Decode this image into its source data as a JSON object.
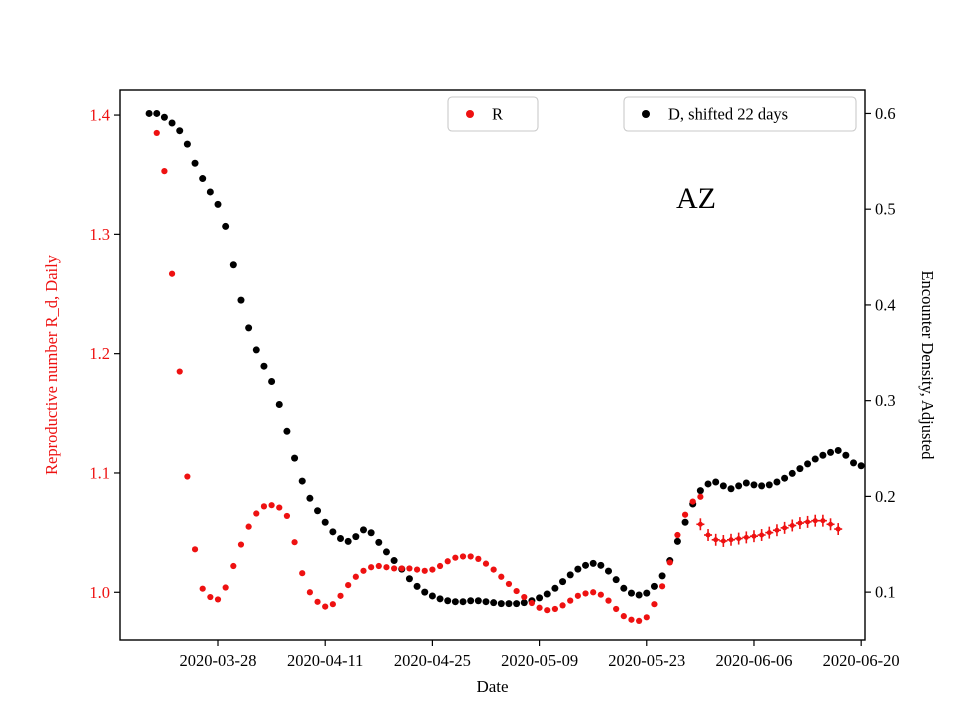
{
  "page": {
    "background": "#ffffff"
  },
  "chart_data": {
    "type": "scatter",
    "annotation": "AZ",
    "xlabel": "Date",
    "x_axis": {
      "base_date": "2020-03-28",
      "lim": [
        -12.8,
        84.5
      ],
      "ticks": [
        "2020-03-28",
        "2020-04-11",
        "2020-04-25",
        "2020-05-09",
        "2020-05-23",
        "2020-06-06",
        "2020-06-20"
      ]
    },
    "left_axis": {
      "label": "Reproductive number R_d, Daily",
      "color": "#ee1111",
      "ticks": [
        1.0,
        1.1,
        1.2,
        1.3,
        1.4
      ],
      "lim": [
        0.96,
        1.421
      ]
    },
    "right_axis": {
      "label": "Encounter Density, Adjusted",
      "color": "#000000",
      "ticks": [
        0.1,
        0.2,
        0.3,
        0.4,
        0.5,
        0.6
      ],
      "lim": [
        0.05,
        0.6245
      ]
    },
    "legend": [
      {
        "label": "R",
        "color": "#ee1111"
      },
      {
        "label": "D, shifted 22 days",
        "color": "#000000"
      }
    ],
    "series": [
      {
        "name": "D, shifted 22 days",
        "axis": "right",
        "color": "#000000",
        "marker": "circle",
        "start_date": "2020-03-19",
        "step_days": 1,
        "values": [
          0.6,
          0.6,
          0.596,
          0.59,
          0.582,
          0.568,
          0.548,
          0.532,
          0.518,
          0.505,
          0.482,
          0.442,
          0.405,
          0.376,
          0.353,
          0.336,
          0.32,
          0.296,
          0.268,
          0.24,
          0.216,
          0.198,
          0.185,
          0.173,
          0.163,
          0.156,
          0.153,
          0.158,
          0.165,
          0.162,
          0.152,
          0.142,
          0.133,
          0.124,
          0.114,
          0.106,
          0.1,
          0.096,
          0.093,
          0.091,
          0.09,
          0.09,
          0.091,
          0.091,
          0.09,
          0.089,
          0.088,
          0.088,
          0.088,
          0.089,
          0.091,
          0.094,
          0.098,
          0.104,
          0.111,
          0.118,
          0.124,
          0.128,
          0.13,
          0.128,
          0.122,
          0.113,
          0.104,
          0.099,
          0.097,
          0.099,
          0.106,
          0.117,
          0.133,
          0.153,
          0.173,
          0.192,
          0.206,
          0.213,
          0.215,
          0.211,
          0.208,
          0.211,
          0.214,
          0.212,
          0.211,
          0.212,
          0.215,
          0.219,
          0.224,
          0.229,
          0.234,
          0.239,
          0.243,
          0.246,
          0.248,
          0.243,
          0.235,
          0.232
        ]
      },
      {
        "name": "R",
        "axis": "left",
        "color": "#ee1111",
        "marker": "circle",
        "start_date": "2020-03-20",
        "step_days": 1,
        "values": [
          1.385,
          1.353,
          1.267,
          1.185,
          1.097,
          1.036,
          1.003,
          0.996,
          0.994,
          1.004,
          1.022,
          1.04,
          1.055,
          1.066,
          1.072,
          1.073,
          1.071,
          1.064,
          1.042,
          1.016,
          1.0,
          0.992,
          0.988,
          0.99,
          0.997,
          1.006,
          1.013,
          1.018,
          1.021,
          1.022,
          1.021,
          1.02,
          1.02,
          1.02,
          1.019,
          1.018,
          1.019,
          1.022,
          1.026,
          1.029,
          1.03,
          1.03,
          1.028,
          1.024,
          1.019,
          1.013,
          1.007,
          1.001,
          0.996,
          0.991,
          0.987,
          0.985,
          0.986,
          0.989,
          0.993,
          0.997,
          0.999,
          1.0,
          0.998,
          0.993,
          0.986,
          0.98,
          0.977,
          0.976,
          0.979,
          0.99,
          1.005,
          1.025,
          1.048,
          1.065,
          1.076,
          1.08
        ]
      },
      {
        "name": "R with error bars",
        "axis": "left",
        "color": "#ee1111",
        "marker": "plus_errorbar",
        "error": 0.005,
        "start_date": "2020-05-30",
        "step_days": 1,
        "values": [
          1.057,
          1.048,
          1.044,
          1.043,
          1.044,
          1.045,
          1.046,
          1.047,
          1.048,
          1.05,
          1.052,
          1.054,
          1.056,
          1.058,
          1.059,
          1.06,
          1.06,
          1.057,
          1.053
        ]
      }
    ]
  }
}
